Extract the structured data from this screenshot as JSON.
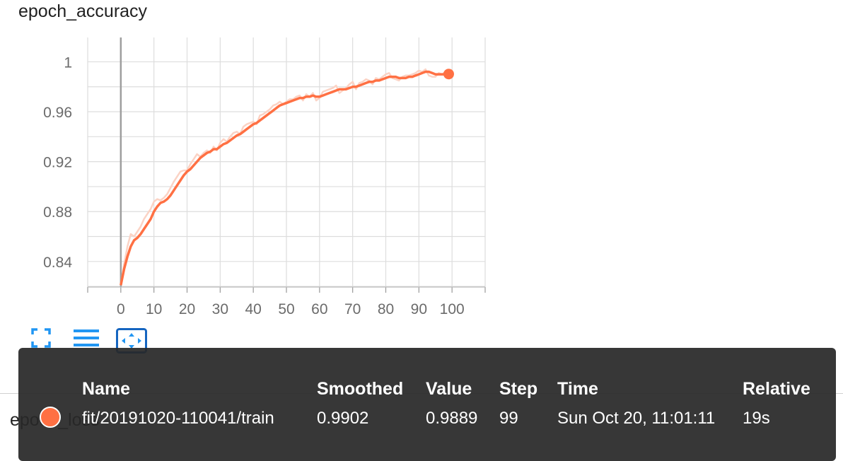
{
  "card": {
    "title": "epoch_accuracy",
    "next_card_title": "epoch_loss"
  },
  "colors": {
    "series": "#ff7043",
    "series_raw": "#fbd3c5",
    "grid": "#dddddd",
    "toolbar": "#2196f3"
  },
  "toolbar": [
    {
      "name": "fullscreen-icon"
    },
    {
      "name": "log-scale-icon"
    },
    {
      "name": "fit-domain-icon"
    }
  ],
  "chart_data": {
    "type": "line",
    "title": "epoch_accuracy",
    "xlabel": "",
    "ylabel": "",
    "xlim": [
      -10,
      110
    ],
    "ylim": [
      0.8195,
      1.0195
    ],
    "x_ticks": [
      "0",
      "10",
      "20",
      "30",
      "40",
      "50",
      "60",
      "70",
      "80",
      "90",
      "100"
    ],
    "y_ticks": [
      "0.84",
      "0.88",
      "0.92",
      "0.96",
      "1"
    ],
    "grid": true,
    "series": [
      {
        "name": "fit/20191020-110041/train",
        "x": [
          0,
          1,
          2,
          3,
          4,
          5,
          6,
          7,
          8,
          9,
          10,
          11,
          12,
          13,
          14,
          15,
          16,
          17,
          18,
          19,
          20,
          21,
          22,
          23,
          24,
          25,
          26,
          27,
          28,
          29,
          30,
          31,
          32,
          33,
          34,
          35,
          36,
          37,
          38,
          39,
          40,
          41,
          42,
          43,
          44,
          45,
          46,
          47,
          48,
          49,
          50,
          51,
          52,
          53,
          54,
          55,
          56,
          57,
          58,
          59,
          60,
          61,
          62,
          63,
          64,
          65,
          66,
          67,
          68,
          69,
          70,
          71,
          72,
          73,
          74,
          75,
          76,
          77,
          78,
          79,
          80,
          81,
          82,
          83,
          84,
          85,
          86,
          87,
          88,
          89,
          90,
          91,
          92,
          93,
          94,
          95,
          96,
          97,
          98,
          99
        ],
        "smoothed": [
          0.821,
          0.834,
          0.844,
          0.852,
          0.857,
          0.859,
          0.862,
          0.866,
          0.87,
          0.874,
          0.88,
          0.884,
          0.887,
          0.888,
          0.89,
          0.893,
          0.897,
          0.901,
          0.905,
          0.909,
          0.912,
          0.914,
          0.917,
          0.92,
          0.923,
          0.925,
          0.927,
          0.928,
          0.93,
          0.93,
          0.932,
          0.934,
          0.935,
          0.937,
          0.939,
          0.941,
          0.942,
          0.944,
          0.946,
          0.948,
          0.95,
          0.951,
          0.953,
          0.955,
          0.957,
          0.959,
          0.961,
          0.963,
          0.965,
          0.966,
          0.967,
          0.968,
          0.969,
          0.97,
          0.971,
          0.971,
          0.972,
          0.972,
          0.973,
          0.972,
          0.972,
          0.973,
          0.974,
          0.975,
          0.976,
          0.977,
          0.978,
          0.978,
          0.978,
          0.979,
          0.98,
          0.98,
          0.981,
          0.982,
          0.983,
          0.984,
          0.984,
          0.985,
          0.985,
          0.986,
          0.987,
          0.988,
          0.988,
          0.988,
          0.987,
          0.987,
          0.987,
          0.988,
          0.988,
          0.989,
          0.99,
          0.991,
          0.992,
          0.992,
          0.991,
          0.99,
          0.99,
          0.99,
          0.99,
          0.9902
        ],
        "values": [
          0.821,
          0.838,
          0.852,
          0.862,
          0.86,
          0.864,
          0.868,
          0.874,
          0.878,
          0.882,
          0.888,
          0.89,
          0.889,
          0.891,
          0.894,
          0.899,
          0.904,
          0.908,
          0.912,
          0.913,
          0.913,
          0.918,
          0.922,
          0.926,
          0.924,
          0.927,
          0.929,
          0.927,
          0.932,
          0.929,
          0.935,
          0.938,
          0.936,
          0.94,
          0.943,
          0.944,
          0.942,
          0.948,
          0.95,
          0.951,
          0.952,
          0.95,
          0.957,
          0.958,
          0.96,
          0.962,
          0.965,
          0.966,
          0.968,
          0.966,
          0.968,
          0.97,
          0.97,
          0.972,
          0.973,
          0.969,
          0.974,
          0.972,
          0.975,
          0.969,
          0.971,
          0.976,
          0.977,
          0.978,
          0.979,
          0.981,
          0.975,
          0.977,
          0.979,
          0.982,
          0.984,
          0.978,
          0.983,
          0.984,
          0.986,
          0.985,
          0.982,
          0.987,
          0.986,
          0.988,
          0.99,
          0.991,
          0.987,
          0.986,
          0.985,
          0.988,
          0.989,
          0.989,
          0.99,
          0.991,
          0.993,
          0.992,
          0.994,
          0.989,
          0.988,
          0.988,
          0.991,
          0.99,
          0.992,
          0.9889
        ]
      }
    ]
  },
  "tooltip": {
    "headers": {
      "name": "Name",
      "smoothed": "Smoothed",
      "value": "Value",
      "step": "Step",
      "time": "Time",
      "relative": "Relative"
    },
    "row": {
      "name": "fit/20191020-110041/train",
      "smoothed": "0.9902",
      "value": "0.9889",
      "step": "99",
      "time": "Sun Oct 20, 11:01:11",
      "relative": "19s"
    }
  }
}
